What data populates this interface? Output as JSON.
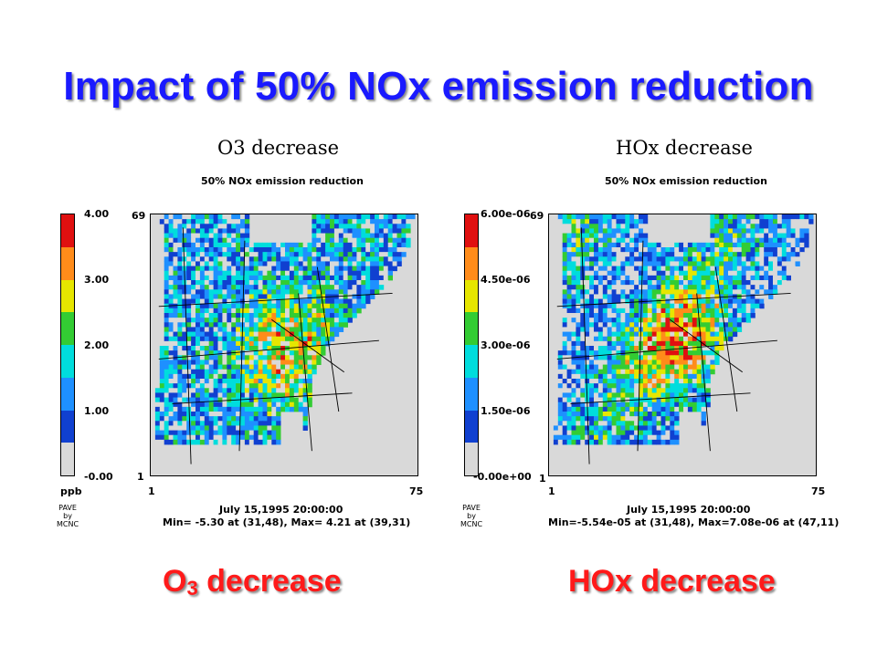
{
  "slide_title": "Impact of 50% NOx emission reduction",
  "panels": [
    {
      "id": "o3",
      "title": "O3 decrease",
      "subtitle": "50% NOx emission reduction",
      "colorbar_labels": [
        "4.00",
        "3.00",
        "2.00",
        "1.00",
        "-0.00"
      ],
      "units": "ppb",
      "y_top": "69",
      "y_bottom": "1",
      "x_left": "1",
      "x_right": "75",
      "date": "July 15,1995 20:00:00",
      "minmax": "Min= -5.30 at (31,48), Max=  4.21 at (39,31)"
    },
    {
      "id": "hox",
      "title": "HOx decrease",
      "subtitle": "50% NOx emission reduction",
      "colorbar_labels": [
        "6.00e-06",
        "4.50e-06",
        "3.00e-06",
        "1.50e-06",
        "-0.00e+00"
      ],
      "units": "",
      "y_top": "69",
      "y_bottom": "1",
      "x_left": "1",
      "x_right": "75",
      "date": "July 15,1995 20:00:00",
      "minmax": "Min=-5.54e-05 at (31,48), Max=7.08e-06 at (47,11)"
    }
  ],
  "credit": {
    "line1": "PAVE",
    "line2": "by",
    "line3": "MCNC"
  },
  "bottom": {
    "left_main": "O",
    "left_sub": "3",
    "left_rest": " decrease",
    "right": "HOx decrease"
  },
  "colors": {
    "scale": [
      "#e01010",
      "#ff8c1a",
      "#e6e600",
      "#33cc33",
      "#00dddd",
      "#1e90ff",
      "#1040d0",
      "#d9d9d9"
    ],
    "title": "#1a1aff",
    "bottom_label": "#ff1a1a"
  }
}
